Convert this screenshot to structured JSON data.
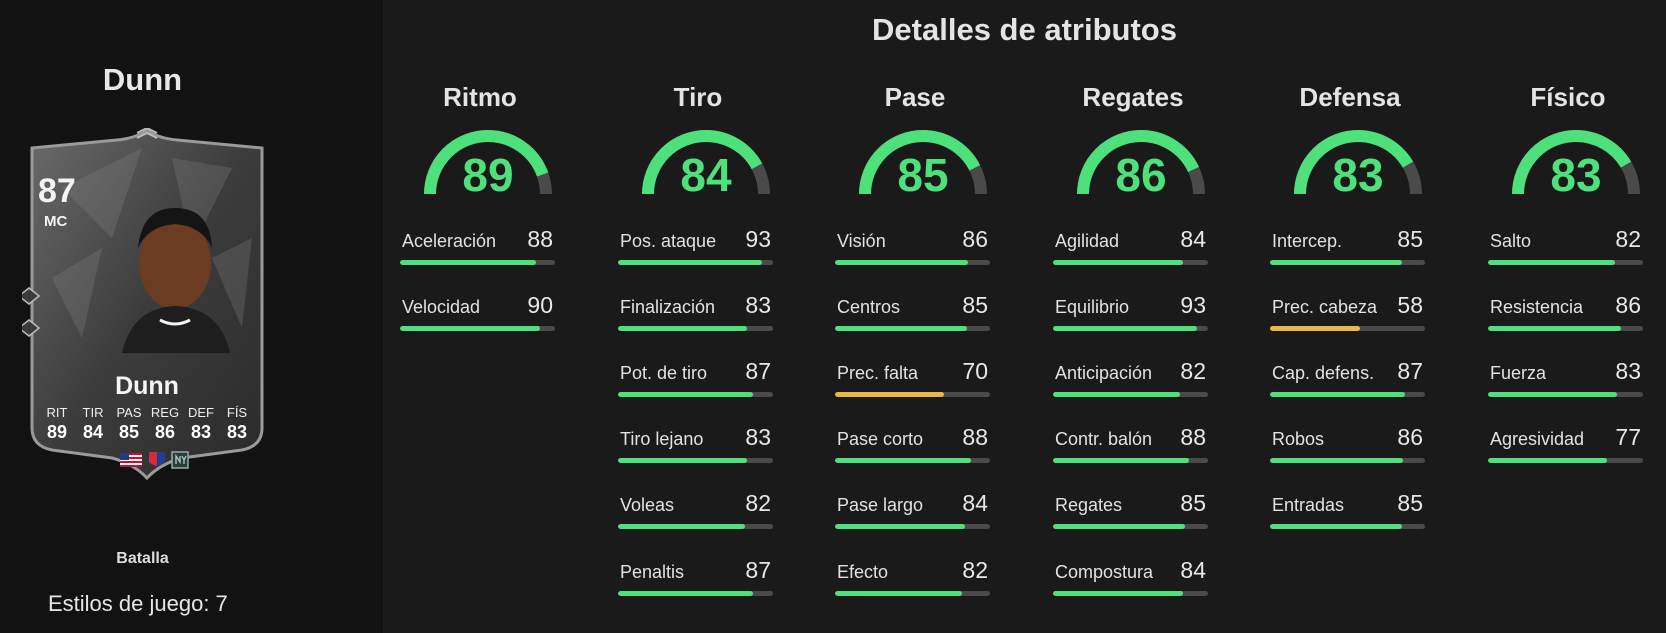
{
  "page_title": "Detalles de atributos",
  "player": {
    "name_header": "Dunn",
    "card": {
      "rating": "87",
      "position": "MC",
      "name": "Dunn",
      "stat_labels": [
        "RIT",
        "TIR",
        "PAS",
        "REG",
        "DEF",
        "FÍS"
      ],
      "stat_values": [
        "89",
        "84",
        "85",
        "86",
        "83",
        "83"
      ],
      "badges": [
        "us-flag-icon",
        "nwsl-league-icon",
        "ny-club-icon"
      ]
    },
    "playstyle_label": "Batalla",
    "playstyles_count": "Estilos de juego: 7"
  },
  "colors": {
    "accent_green": "#4ee07b",
    "warning_yellow": "#e8b84a",
    "bar_track": "#4a4a4a"
  },
  "categories": [
    {
      "name": "Ritmo",
      "value": "89",
      "attributes": [
        {
          "name": "Aceleración",
          "value": "88"
        },
        {
          "name": "Velocidad",
          "value": "90"
        }
      ]
    },
    {
      "name": "Tiro",
      "value": "84",
      "attributes": [
        {
          "name": "Pos. ataque",
          "value": "93"
        },
        {
          "name": "Finalización",
          "value": "83"
        },
        {
          "name": "Pot. de tiro",
          "value": "87"
        },
        {
          "name": "Tiro lejano",
          "value": "83"
        },
        {
          "name": "Voleas",
          "value": "82"
        },
        {
          "name": "Penaltis",
          "value": "87"
        }
      ]
    },
    {
      "name": "Pase",
      "value": "85",
      "attributes": [
        {
          "name": "Visión",
          "value": "86"
        },
        {
          "name": "Centros",
          "value": "85"
        },
        {
          "name": "Prec. falta",
          "value": "70"
        },
        {
          "name": "Pase corto",
          "value": "88"
        },
        {
          "name": "Pase largo",
          "value": "84"
        },
        {
          "name": "Efecto",
          "value": "82"
        }
      ]
    },
    {
      "name": "Regates",
      "value": "86",
      "attributes": [
        {
          "name": "Agilidad",
          "value": "84"
        },
        {
          "name": "Equilibrio",
          "value": "93"
        },
        {
          "name": "Anticipación",
          "value": "82"
        },
        {
          "name": "Contr. balón",
          "value": "88"
        },
        {
          "name": "Regates",
          "value": "85"
        },
        {
          "name": "Compostura",
          "value": "84"
        }
      ]
    },
    {
      "name": "Defensa",
      "value": "83",
      "attributes": [
        {
          "name": "Intercep.",
          "value": "85"
        },
        {
          "name": "Prec. cabeza",
          "value": "58"
        },
        {
          "name": "Cap. defens.",
          "value": "87"
        },
        {
          "name": "Robos",
          "value": "86"
        },
        {
          "name": "Entradas",
          "value": "85"
        }
      ]
    },
    {
      "name": "Físico",
      "value": "83",
      "attributes": [
        {
          "name": "Salto",
          "value": "82"
        },
        {
          "name": "Resistencia",
          "value": "86"
        },
        {
          "name": "Fuerza",
          "value": "83"
        },
        {
          "name": "Agresividad",
          "value": "77"
        }
      ]
    }
  ]
}
